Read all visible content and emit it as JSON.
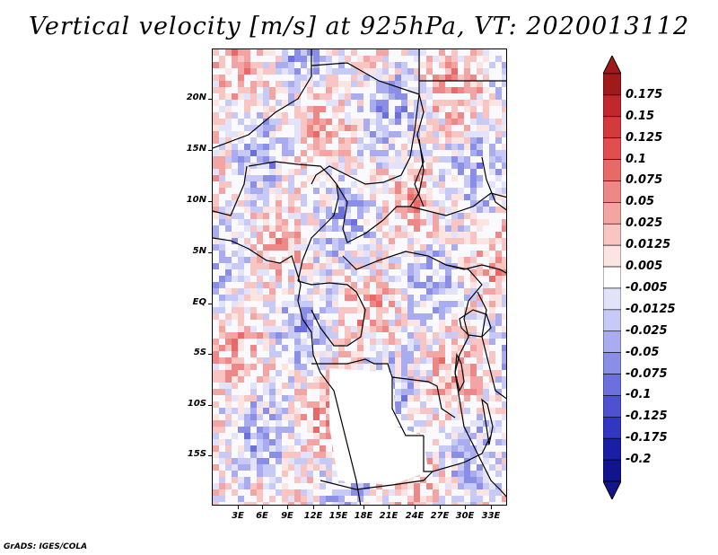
{
  "title": "Vertical velocity [m/s] at 925hPa, VT: 2020013112",
  "footer": "GrADS: IGES/COLA",
  "lat_labels": [
    "20N",
    "15N",
    "10N",
    "5N",
    "EQ",
    "5S",
    "10S",
    "15S"
  ],
  "lon_labels": [
    "3E",
    "6E",
    "9E",
    "12E",
    "15E",
    "18E",
    "21E",
    "24E",
    "27E",
    "30E",
    "33E"
  ],
  "colorbar": {
    "labels": [
      "0.175",
      "0.15",
      "0.125",
      "0.1",
      "0.075",
      "0.05",
      "0.025",
      "0.0125",
      "0.005",
      "-0.005",
      "-0.0125",
      "-0.025",
      "-0.05",
      "-0.075",
      "-0.1",
      "-0.125",
      "-0.175",
      "-0.2"
    ],
    "colors": [
      "#a01a1c",
      "#c1272d",
      "#d4393d",
      "#e04e4f",
      "#e86a68",
      "#ee8886",
      "#f3a5a3",
      "#f8c5c3",
      "#fce4e3",
      "#ffffff",
      "#e2e3fb",
      "#c7c9f6",
      "#a9acef",
      "#8a8ee6",
      "#6c70dc",
      "#4f52d0",
      "#3236c0",
      "#1a1ea6",
      "#11148c"
    ],
    "top_arrow_color": "#a01a1c",
    "bottom_arrow_color": "#11148c"
  }
}
